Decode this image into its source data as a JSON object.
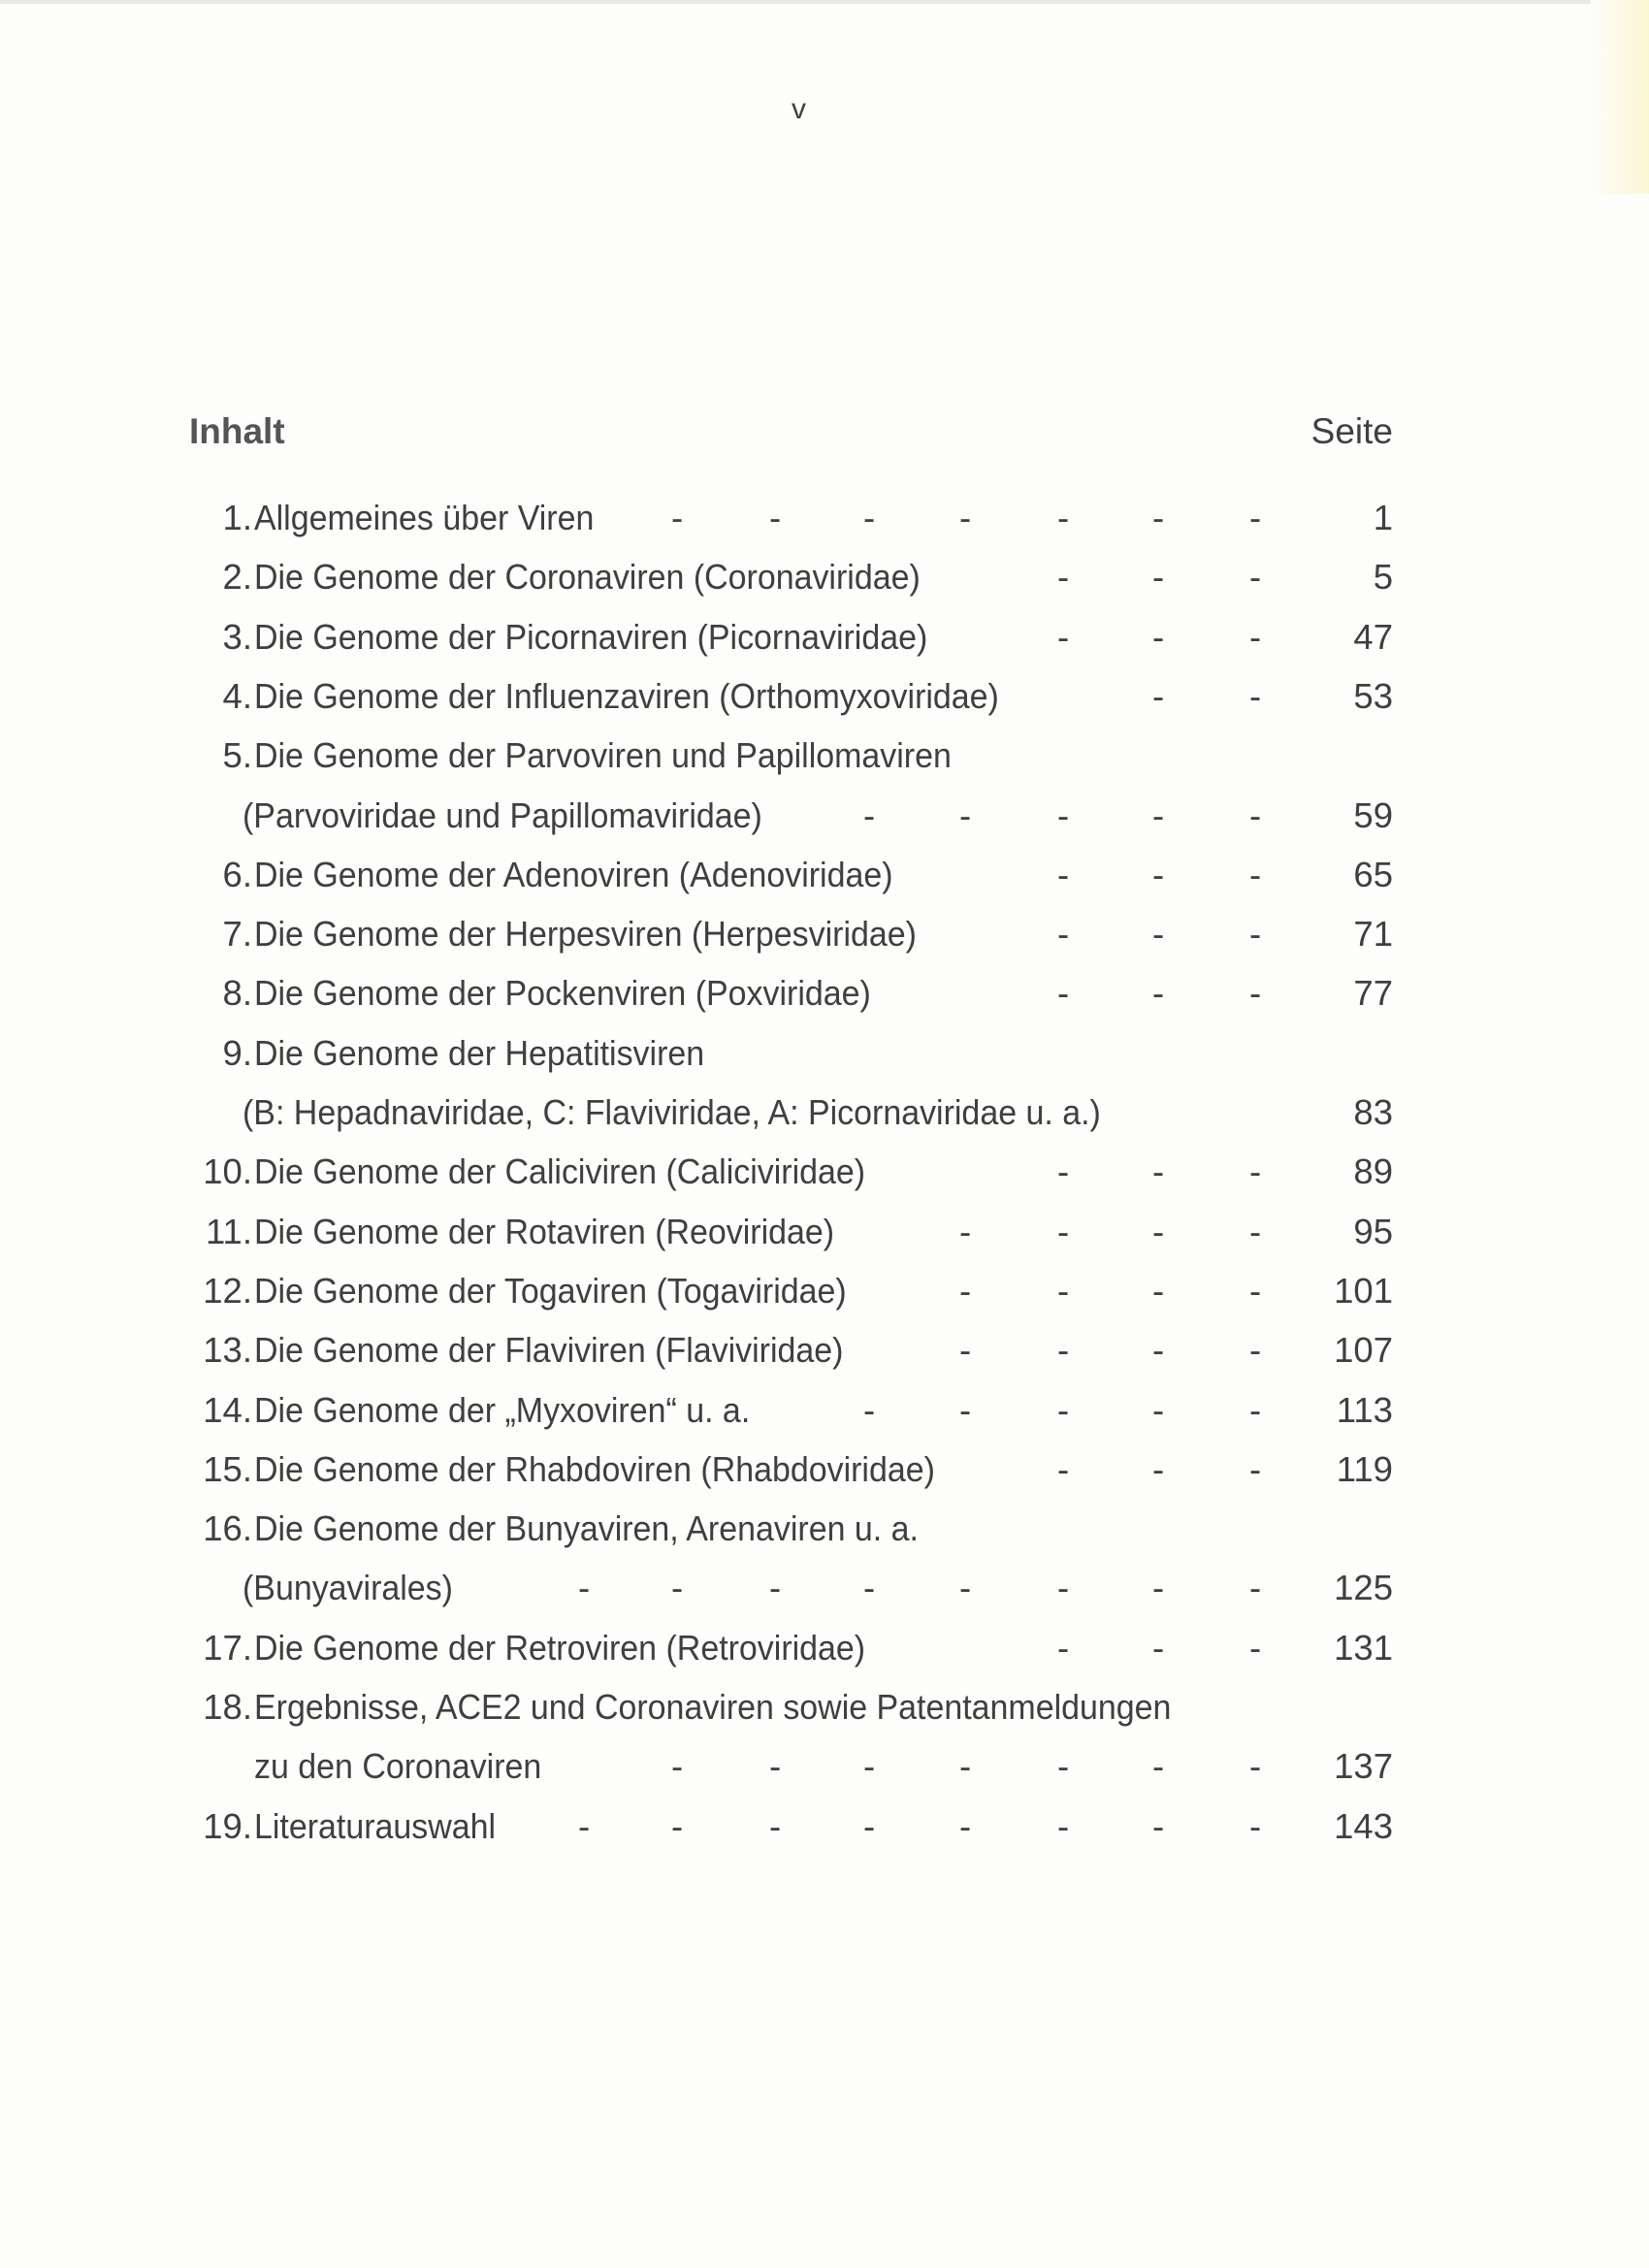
{
  "page_number": "v",
  "heading": "Inhalt",
  "page_column_label": "Seite",
  "entries": [
    {
      "num": "1.",
      "text": "Allgemeines über Viren",
      "dashes": 7,
      "page": "1"
    },
    {
      "num": "2.",
      "text": "Die Genome der Coronaviren (Coronaviridae)",
      "dashes": 3,
      "page": "5"
    },
    {
      "num": "3.",
      "text": "Die Genome der Picornaviren (Picornaviridae)",
      "dashes": 3,
      "page": "47"
    },
    {
      "num": "4.",
      "text": "Die Genome der Influenzaviren (Orthomyxoviridae)",
      "dashes": 2,
      "page": "53"
    },
    {
      "num": "5.",
      "text": "Die Genome der Parvoviren und Papillomaviren",
      "dashes": 0,
      "page": ""
    },
    {
      "num": "",
      "text": "(Parvoviridae und Papillomaviridae)",
      "dashes": 5,
      "page": "59",
      "cont": true
    },
    {
      "num": "6.",
      "text": "Die Genome der Adenoviren (Adenoviridae)",
      "dashes": 3,
      "page": "65"
    },
    {
      "num": "7.",
      "text": "Die Genome der Herpesviren (Herpesviridae)",
      "dashes": 3,
      "page": "71"
    },
    {
      "num": "8.",
      "text": "Die Genome der Pockenviren (Poxviridae)",
      "dashes": 3,
      "page": "77"
    },
    {
      "num": "9.",
      "text": "Die Genome der Hepatitisviren",
      "dashes": 0,
      "page": ""
    },
    {
      "num": "",
      "text": "(B: Hepadnaviridae, C: Flaviviridae, A: Picornaviridae u. a.)",
      "dashes": 0,
      "page": "83",
      "cont": true
    },
    {
      "num": "10.",
      "text": "Die Genome der Caliciviren (Caliciviridae)",
      "dashes": 3,
      "page": "89"
    },
    {
      "num": "11.",
      "text": "Die Genome der Rotaviren (Reoviridae)",
      "dashes": 4,
      "page": "95"
    },
    {
      "num": "12.",
      "text": "Die Genome der Togaviren (Togaviridae)",
      "dashes": 4,
      "page": "101"
    },
    {
      "num": "13.",
      "text": "Die Genome der Flaviviren (Flaviviridae)",
      "dashes": 4,
      "page": "107"
    },
    {
      "num": "14.",
      "text": "Die Genome der „Myxoviren“  u. a.",
      "dashes": 5,
      "page": "113"
    },
    {
      "num": "15.",
      "text": "Die Genome der Rhabdoviren (Rhabdoviridae)",
      "dashes": 3,
      "page": "119"
    },
    {
      "num": "16.",
      "text": "Die Genome der Bunyaviren, Arenaviren u. a.",
      "dashes": 0,
      "page": ""
    },
    {
      "num": "",
      "text": "(Bunyavirales)",
      "dashes": 8,
      "page": "125",
      "cont": true
    },
    {
      "num": "17.",
      "text": "Die Genome der Retroviren (Retroviridae)",
      "dashes": 3,
      "page": "131"
    },
    {
      "num": "18.",
      "text": "Ergebnisse, ACE2 und Coronaviren sowie Patentanmeldungen",
      "dashes": 0,
      "page": ""
    },
    {
      "num": "",
      "text": "zu den  Coronaviren",
      "dashes": 7,
      "page": "137",
      "cont2": true
    },
    {
      "num": "19.",
      "text": "Literaturauswahl",
      "dashes": 8,
      "page": "143"
    }
  ]
}
